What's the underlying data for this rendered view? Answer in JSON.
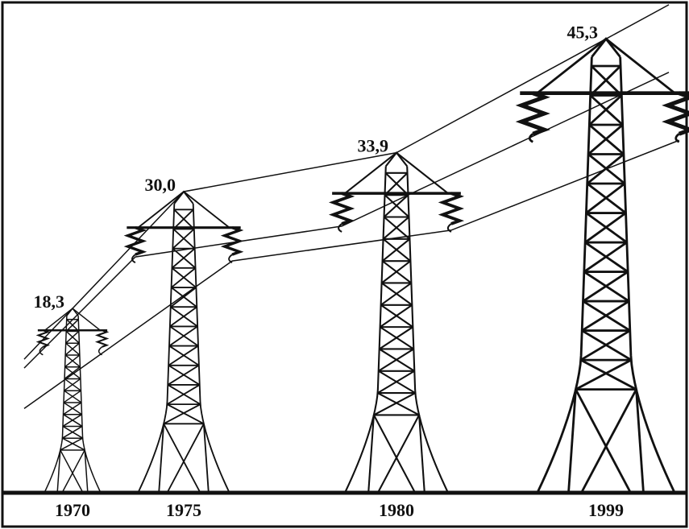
{
  "chart_data": {
    "type": "pictogram",
    "categories": [
      "1970",
      "1975",
      "1980",
      "1999"
    ],
    "values": [
      18.3,
      30.0,
      33.9,
      45.3
    ],
    "value_labels": [
      "18,3",
      "30,0",
      "33,9",
      "45,3"
    ],
    "color": "#111111"
  }
}
